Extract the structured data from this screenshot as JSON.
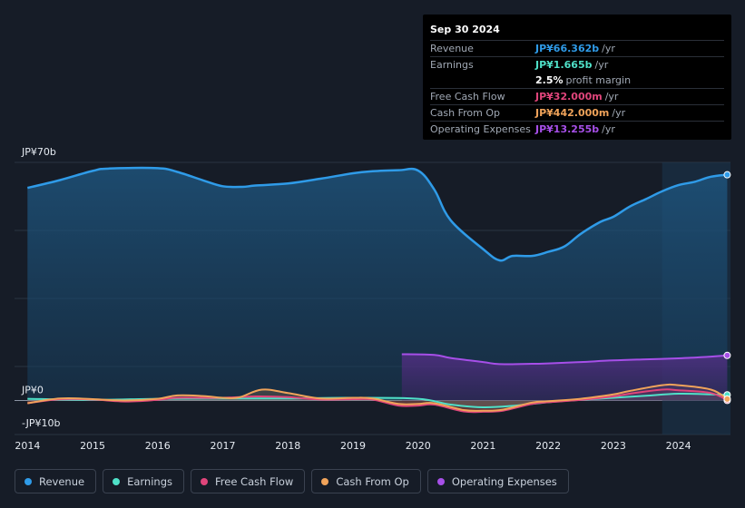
{
  "tooltip": {
    "date": "Sep 30 2024",
    "rows": [
      {
        "label": "Revenue",
        "value": "JP¥66.362b",
        "unit": "/yr",
        "color": "#2f9be8"
      },
      {
        "label": "Earnings",
        "value": "JP¥1.665b",
        "unit": "/yr",
        "color": "#4fe0c8"
      },
      {
        "label": "",
        "value": "2.5%",
        "unit": "profit margin",
        "color": "#ffffff"
      },
      {
        "label": "Free Cash Flow",
        "value": "JP¥32.000m",
        "unit": "/yr",
        "color": "#e0457b"
      },
      {
        "label": "Cash From Op",
        "value": "JP¥442.000m",
        "unit": "/yr",
        "color": "#f0a35a"
      },
      {
        "label": "Operating Expenses",
        "value": "JP¥13.255b",
        "unit": "/yr",
        "color": "#a64fe8"
      }
    ]
  },
  "legend": [
    {
      "label": "Revenue",
      "color": "#2f9be8"
    },
    {
      "label": "Earnings",
      "color": "#4fe0c8"
    },
    {
      "label": "Free Cash Flow",
      "color": "#e0457b"
    },
    {
      "label": "Cash From Op",
      "color": "#f0a35a"
    },
    {
      "label": "Operating Expenses",
      "color": "#a64fe8"
    }
  ],
  "chart_data": {
    "type": "area",
    "title": "",
    "xlabel": "",
    "ylabel": "",
    "ylim": [
      -10,
      70
    ],
    "y_tick_labels": [
      {
        "value": 70,
        "label": "JP¥70b"
      },
      {
        "value": 0,
        "label": "JP¥0"
      },
      {
        "value": -10,
        "label": "-JP¥10b"
      }
    ],
    "x_ticks": [
      2014,
      2015,
      2016,
      2017,
      2018,
      2019,
      2020,
      2021,
      2022,
      2023,
      2024
    ],
    "x_tick_labels": [
      "2014",
      "2015",
      "2016",
      "2017",
      "2018",
      "2019",
      "2020",
      "2021",
      "2022",
      "2023",
      "2024"
    ],
    "xlim": [
      2013.8,
      2024.8
    ],
    "highlight_from": 2023.75,
    "series": [
      {
        "name": "Revenue",
        "color": "#2f9be8",
        "x": [
          2014.0,
          2014.5,
          2015.0,
          2015.25,
          2016.0,
          2016.3,
          2016.7,
          2017.0,
          2017.3,
          2017.5,
          2018.0,
          2018.5,
          2019.0,
          2019.3,
          2019.7,
          2020.0,
          2020.25,
          2020.5,
          2021.0,
          2021.25,
          2021.45,
          2021.75,
          2022.0,
          2022.25,
          2022.5,
          2022.8,
          2023.0,
          2023.25,
          2023.5,
          2023.75,
          2024.0,
          2024.25,
          2024.5,
          2024.75
        ],
        "values": [
          62.5,
          64.8,
          67.5,
          68.2,
          68.3,
          67.2,
          64.7,
          63.0,
          62.8,
          63.2,
          63.8,
          65.2,
          66.8,
          67.4,
          67.7,
          67.6,
          62.0,
          53.0,
          44.5,
          41.2,
          42.5,
          42.5,
          43.7,
          45.3,
          49.0,
          52.5,
          54.0,
          57.0,
          59.2,
          61.5,
          63.3,
          64.3,
          65.8,
          66.362
        ]
      },
      {
        "name": "Earnings",
        "color": "#4fe0c8",
        "x": [
          2014.0,
          2015.0,
          2016.0,
          2017.0,
          2018.0,
          2019.0,
          2020.0,
          2020.5,
          2021.0,
          2021.5,
          2022.0,
          2022.5,
          2023.0,
          2023.5,
          2024.0,
          2024.5,
          2024.75
        ],
        "values": [
          0.5,
          0.2,
          0.5,
          0.6,
          0.6,
          0.8,
          0.5,
          -1.2,
          -2.0,
          -1.5,
          -0.5,
          0.2,
          0.8,
          1.4,
          2.0,
          1.8,
          1.665
        ]
      },
      {
        "name": "Free Cash Flow",
        "color": "#e0457b",
        "x": [
          2014.0,
          2014.5,
          2015.0,
          2015.5,
          2016.0,
          2016.3,
          2017.0,
          2017.5,
          2018.0,
          2018.5,
          2019.0,
          2019.3,
          2019.7,
          2020.0,
          2020.25,
          2020.7,
          2021.0,
          2021.3,
          2021.75,
          2022.0,
          2022.5,
          2023.0,
          2023.25,
          2023.75,
          2024.0,
          2024.5,
          2024.75
        ],
        "values": [
          -0.8,
          0.4,
          0.3,
          -0.3,
          0.2,
          0.8,
          0.8,
          1.2,
          1.0,
          0.3,
          0.4,
          0.3,
          -1.5,
          -1.5,
          -1.2,
          -3.2,
          -3.3,
          -3.0,
          -1.0,
          -0.5,
          0.2,
          1.2,
          2.0,
          3.2,
          3.0,
          2.2,
          0.032
        ]
      },
      {
        "name": "Cash From Op",
        "color": "#f0a35a",
        "x": [
          2014.0,
          2014.5,
          2015.0,
          2015.5,
          2016.0,
          2016.3,
          2016.7,
          2017.0,
          2017.25,
          2017.6,
          2018.0,
          2018.5,
          2019.0,
          2019.3,
          2019.7,
          2020.0,
          2020.25,
          2020.7,
          2021.0,
          2021.3,
          2021.75,
          2022.0,
          2022.5,
          2023.0,
          2023.25,
          2023.75,
          2024.0,
          2024.5,
          2024.75
        ],
        "values": [
          -0.8,
          0.6,
          0.4,
          0.0,
          0.5,
          1.5,
          1.3,
          0.8,
          0.9,
          3.2,
          2.2,
          0.6,
          0.8,
          0.6,
          -1.0,
          -1.0,
          -0.8,
          -2.8,
          -3.0,
          -2.7,
          -0.6,
          -0.2,
          0.5,
          1.8,
          2.8,
          4.5,
          4.5,
          3.2,
          0.442
        ]
      },
      {
        "name": "Operating Expenses",
        "color": "#a64fe8",
        "x": [
          2019.75,
          2020.25,
          2020.5,
          2021.0,
          2021.25,
          2021.75,
          2022.0,
          2022.5,
          2023.0,
          2023.5,
          2024.0,
          2024.5,
          2024.75
        ],
        "values": [
          13.6,
          13.4,
          12.5,
          11.3,
          10.7,
          10.8,
          10.9,
          11.3,
          11.8,
          12.1,
          12.4,
          12.9,
          13.255
        ]
      }
    ]
  }
}
